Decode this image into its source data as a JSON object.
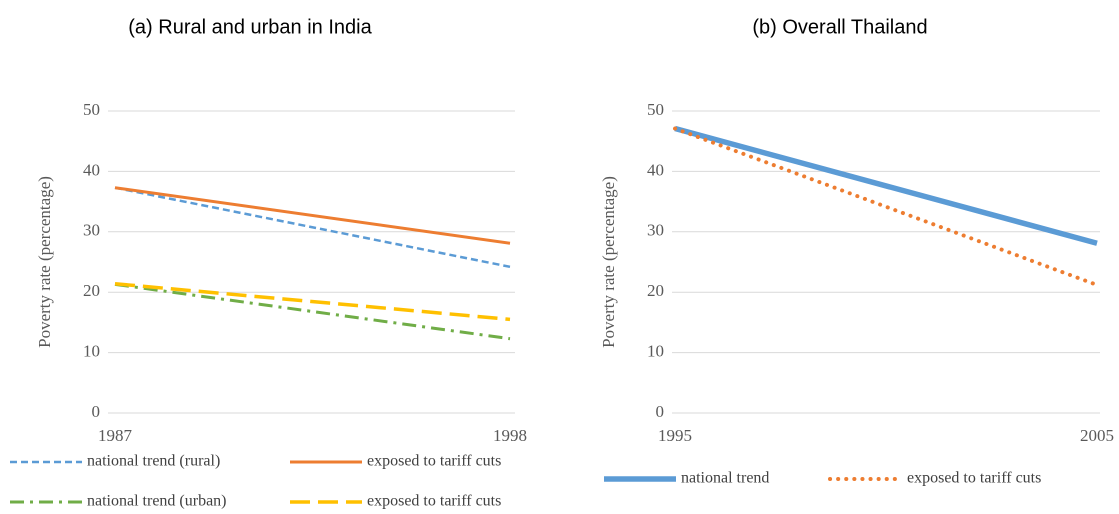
{
  "chart_data": [
    {
      "type": "line",
      "title": "(a) Rural and urban in India",
      "ylabel": "Poverty rate (percentage)",
      "categories": [
        "1987",
        "1998"
      ],
      "ylim": [
        0,
        50
      ],
      "yticks": [
        0,
        10,
        20,
        30,
        40,
        50
      ],
      "grid": true,
      "series": [
        {
          "name": "national trend (rural)",
          "color": "#5b9bd5",
          "dash": "dashed",
          "values": [
            37.3,
            24.2
          ]
        },
        {
          "name": "exposed to tariff cuts",
          "color": "#ed7d31",
          "dash": "solid",
          "values": [
            37.3,
            28.1
          ]
        },
        {
          "name": "national trend (urban)",
          "color": "#70ad47",
          "dash": "dashdot",
          "values": [
            21.3,
            12.3
          ]
        },
        {
          "name": "exposed to tariff cuts",
          "color": "#ffc000",
          "dash": "longdash",
          "values": [
            21.4,
            15.5
          ]
        }
      ]
    },
    {
      "type": "line",
      "title": "(b) Overall Thailand",
      "ylabel": "Poverty rate (percentage)",
      "categories": [
        "1995",
        "2005"
      ],
      "ylim": [
        0,
        50
      ],
      "yticks": [
        0,
        10,
        20,
        30,
        40,
        50
      ],
      "grid": true,
      "series": [
        {
          "name": "national trend",
          "color": "#5b9bd5",
          "dash": "thick",
          "values": [
            47.1,
            28.1
          ]
        },
        {
          "name": "exposed to tariff cuts",
          "color": "#ed7d31",
          "dash": "dotted",
          "values": [
            47.1,
            21.2
          ]
        }
      ]
    }
  ]
}
